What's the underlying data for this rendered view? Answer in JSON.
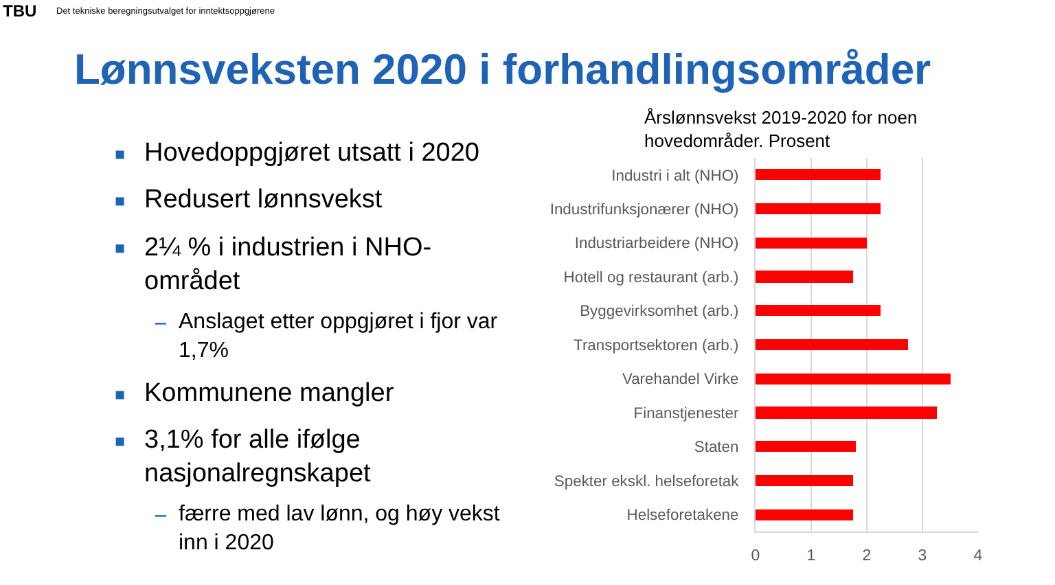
{
  "chart_data": {
    "type": "bar",
    "orientation": "horizontal",
    "title": "Lønnsveksten 2020 i forhandlingsområder",
    "subtitle": "Årslønnsvekst 2019-2020 for noen hovedområder. Prosent",
    "categories": [
      "Industri i alt (NHO)",
      "Industrifunksjonærer (NHO)",
      "Industriarbeidere (NHO)",
      "Hotell og restaurant (arb.)",
      "Byggevirksomhet (arb.)",
      "Transportsektoren (arb.)",
      "Varehandel Virke",
      "Finanstjenester",
      "Staten",
      "Spekter ekskl. helseforetak",
      "Helseforetakene"
    ],
    "values": [
      2.25,
      2.25,
      2.0,
      1.75,
      2.25,
      2.75,
      3.5,
      3.25,
      1.8,
      1.75,
      1.75
    ],
    "color": "#ff0000",
    "xlim": [
      0,
      4
    ],
    "xticks": [
      0,
      1,
      2,
      3,
      4
    ],
    "grid": "x",
    "annotations": [
      "TBU",
      "Det tekniske beregningsutvalget for inntektsoppgjørene",
      "Hovedoppgjøret utsatt i 2020",
      "Redusert lønnsvekst",
      "2¼ % i industrien i NHO-området",
      "Anslaget etter oppgjøret i fjor var 1,7%",
      "Kommunene mangler",
      "3,1% for alle ifølge nasjonalregnskapet",
      "færre med lav lønn, og høy vekst inn i 2020"
    ]
  }
}
